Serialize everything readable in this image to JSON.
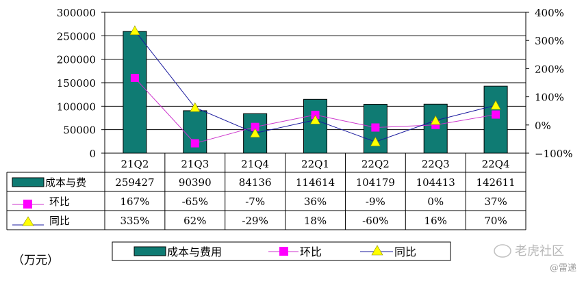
{
  "chart_data": {
    "type": "bar",
    "categories": [
      "21Q2",
      "21Q3",
      "21Q4",
      "22Q1",
      "22Q2",
      "22Q3",
      "22Q4"
    ],
    "series": [
      {
        "name": "成本与费用",
        "kind": "bar",
        "axis": "left",
        "values": [
          259427,
          90390,
          84136,
          114614,
          104179,
          104413,
          142611
        ],
        "labels": [
          "259427",
          "90390",
          "84136",
          "114614",
          "104179",
          "104413",
          "142611"
        ],
        "color": "#0f7b73"
      },
      {
        "name": "环比",
        "kind": "line",
        "axis": "right",
        "marker": "square",
        "values": [
          167,
          -65,
          -7,
          36,
          -9,
          0,
          37
        ],
        "labels": [
          "167%",
          "-65%",
          "-7%",
          "36%",
          "-9%",
          "0%",
          "37%"
        ],
        "color": "#cc33cc"
      },
      {
        "name": "同比",
        "kind": "line",
        "axis": "right",
        "marker": "triangle",
        "values": [
          335,
          62,
          -29,
          18,
          -60,
          16,
          70
        ],
        "labels": [
          "335%",
          "62%",
          "-29%",
          "18%",
          "-60%",
          "16%",
          "70%"
        ],
        "color": "#1a1a9e"
      }
    ],
    "table_row_labels": [
      "成本与费",
      "环比",
      "同比"
    ],
    "legend_labels": [
      "成本与费用",
      "环比",
      "同比"
    ],
    "y_left": {
      "range": [
        0,
        300000
      ],
      "ticks": [
        0,
        50000,
        100000,
        150000,
        200000,
        250000,
        300000
      ],
      "tick_labels": [
        "0",
        "50000",
        "100000",
        "150000",
        "200000",
        "250000",
        "300000"
      ]
    },
    "y_right": {
      "range": [
        -100,
        400
      ],
      "ticks": [
        -100,
        0,
        100,
        200,
        300,
        400
      ],
      "tick_labels": [
        "−100%",
        "0%",
        "100%",
        "200%",
        "300%",
        "400%"
      ]
    },
    "unit_label": "（万元）",
    "grid": "horizontal",
    "legend_position": "bottom",
    "marker_fill": "#ffff00"
  },
  "watermark": {
    "brand": "老虎社区",
    "author": "@雷递"
  }
}
